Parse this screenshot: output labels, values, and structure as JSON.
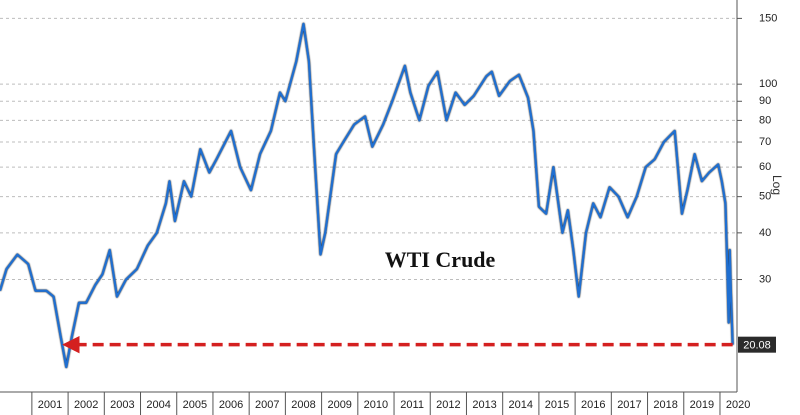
{
  "chart_data": {
    "type": "line",
    "annotation": "WTI Crude",
    "scale_label": "Log",
    "log_scale": true,
    "grid": true,
    "x": [
      2000.12,
      2000.3,
      2000.6,
      2000.9,
      2001.1,
      2001.4,
      2001.6,
      2001.8,
      2001.95,
      2002.1,
      2002.3,
      2002.5,
      2002.75,
      2002.95,
      2003.15,
      2003.35,
      2003.6,
      2003.9,
      2004.2,
      2004.45,
      2004.7,
      2004.8,
      2004.95,
      2005.2,
      2005.4,
      2005.65,
      2005.9,
      2006.1,
      2006.5,
      2006.75,
      2007.05,
      2007.3,
      2007.6,
      2007.85,
      2008.0,
      2008.3,
      2008.5,
      2008.65,
      2008.8,
      2008.97,
      2009.1,
      2009.4,
      2009.6,
      2009.9,
      2010.2,
      2010.4,
      2010.7,
      2010.95,
      2011.3,
      2011.45,
      2011.7,
      2011.95,
      2012.2,
      2012.45,
      2012.7,
      2012.95,
      2013.2,
      2013.55,
      2013.7,
      2013.9,
      2014.2,
      2014.45,
      2014.7,
      2014.85,
      2015.0,
      2015.2,
      2015.4,
      2015.65,
      2015.8,
      2015.95,
      2016.1,
      2016.3,
      2016.5,
      2016.7,
      2016.95,
      2017.2,
      2017.45,
      2017.7,
      2017.95,
      2018.2,
      2018.45,
      2018.75,
      2018.95,
      2019.1,
      2019.3,
      2019.5,
      2019.7,
      2019.95,
      2020.05,
      2020.15,
      2020.2,
      2020.24,
      2020.27,
      2020.3,
      2020.35
    ],
    "series": [
      {
        "color": "#1f6fd1",
        "values": [
          28,
          32,
          35,
          33,
          28,
          28,
          27,
          21,
          17.5,
          21,
          26,
          26,
          29,
          31,
          36,
          27,
          30,
          32,
          37,
          40,
          48,
          55,
          43,
          55,
          50,
          67,
          58,
          63,
          75,
          60,
          52,
          65,
          75,
          95,
          90,
          115,
          145,
          115,
          65,
          35,
          40,
          65,
          70,
          78,
          82,
          68,
          78,
          90,
          112,
          95,
          80,
          99,
          108,
          80,
          95,
          88,
          93,
          105,
          108,
          93,
          102,
          106,
          92,
          75,
          47,
          45,
          60,
          40,
          46,
          36,
          27,
          40,
          48,
          44,
          53,
          50,
          44,
          50,
          60,
          63,
          70,
          75,
          45,
          52,
          65,
          55,
          58,
          61,
          55,
          48,
          33,
          23,
          36,
          28,
          20.08
        ]
      }
    ],
    "current_value": 20.08,
    "arrow_x": [
      2020.35,
      2002.0
    ],
    "arrow_color": "#d42020",
    "xlim": [
      2000.12,
      2020.47
    ],
    "xticks": [
      {
        "value": 2001.5,
        "label": "2001"
      },
      {
        "value": 2002.5,
        "label": "2002"
      },
      {
        "value": 2003.5,
        "label": "2003"
      },
      {
        "value": 2004.5,
        "label": "2004"
      },
      {
        "value": 2005.5,
        "label": "2005"
      },
      {
        "value": 2006.5,
        "label": "2006"
      },
      {
        "value": 2007.5,
        "label": "2007"
      },
      {
        "value": 2008.5,
        "label": "2008"
      },
      {
        "value": 2009.5,
        "label": "2009"
      },
      {
        "value": 2010.5,
        "label": "2010"
      },
      {
        "value": 2011.5,
        "label": "2011"
      },
      {
        "value": 2012.5,
        "label": "2012"
      },
      {
        "value": 2013.5,
        "label": "2013"
      },
      {
        "value": 2014.5,
        "label": "2014"
      },
      {
        "value": 2015.5,
        "label": "2015"
      },
      {
        "value": 2016.5,
        "label": "2016"
      },
      {
        "value": 2017.5,
        "label": "2017"
      },
      {
        "value": 2018.5,
        "label": "2018"
      },
      {
        "value": 2019.5,
        "label": "2019"
      },
      {
        "value": 2020.5,
        "label": "2020"
      }
    ],
    "ylim": [
      15,
      168
    ],
    "yticks": [
      30,
      40,
      50,
      60,
      70,
      80,
      90,
      100,
      150
    ]
  }
}
